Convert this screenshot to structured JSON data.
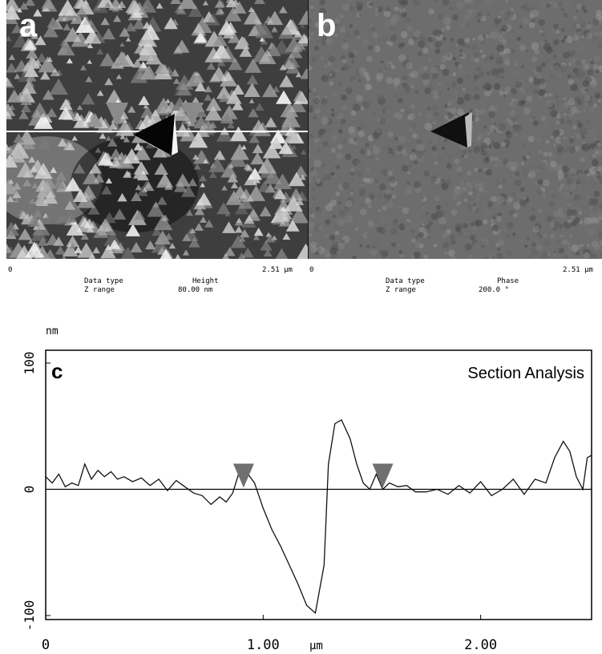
{
  "panel_a": {
    "letter": "a",
    "x_start": "0",
    "x_end": "2.51 µm",
    "data_type_label": "Data type",
    "data_type_value": "Height",
    "z_range_label": "Z range",
    "z_range_value": "80.00 nm"
  },
  "panel_b": {
    "letter": "b",
    "x_start": "0",
    "x_end": "2.51 µm",
    "data_type_label": "Data type",
    "data_type_value": "Phase",
    "z_range_label": "Z range",
    "z_range_value": "200.0 °"
  },
  "chart_data": {
    "type": "line",
    "letter": "c",
    "title": "Section Analysis",
    "ylabel": "nm",
    "xlabel": "µm",
    "xlim": [
      0,
      2.51
    ],
    "ylim": [
      -100,
      100
    ],
    "x_ticks": [
      "0",
      "1.00",
      "2.00"
    ],
    "x_tick_values": [
      0,
      1.0,
      2.0
    ],
    "y_ticks": [
      "100",
      "0",
      "-100"
    ],
    "y_tick_values": [
      100,
      0,
      -100
    ],
    "cursor_markers_x": [
      0.91,
      1.55
    ],
    "series": [
      {
        "x": [
          0,
          0.03,
          0.06,
          0.09,
          0.12,
          0.15,
          0.18,
          0.21,
          0.24,
          0.27,
          0.3,
          0.33,
          0.36,
          0.4,
          0.44,
          0.48,
          0.52,
          0.56,
          0.6,
          0.64,
          0.68,
          0.72,
          0.76,
          0.8,
          0.83,
          0.86,
          0.89,
          0.91,
          0.93,
          0.96,
          1.0,
          1.04,
          1.08,
          1.12,
          1.16,
          1.2,
          1.24,
          1.28,
          1.3,
          1.33,
          1.36,
          1.4,
          1.43,
          1.46,
          1.49,
          1.52,
          1.55,
          1.58,
          1.62,
          1.66,
          1.7,
          1.75,
          1.8,
          1.85,
          1.9,
          1.95,
          2.0,
          2.05,
          2.1,
          2.15,
          2.2,
          2.25,
          2.3,
          2.34,
          2.38,
          2.41,
          2.44,
          2.47,
          2.49,
          2.51
        ],
        "y": [
          10,
          5,
          12,
          2,
          5,
          3,
          20,
          8,
          15,
          10,
          14,
          8,
          10,
          6,
          9,
          3,
          8,
          -1,
          7,
          2,
          -3,
          -5,
          -12,
          -6,
          -10,
          -3,
          14,
          15,
          12,
          5,
          -15,
          -32,
          -45,
          -60,
          -75,
          -92,
          -98,
          -60,
          20,
          52,
          55,
          40,
          20,
          5,
          0,
          12,
          0,
          5,
          2,
          3,
          -2,
          -2,
          0,
          -4,
          3,
          -3,
          6,
          -5,
          0,
          8,
          -4,
          8,
          5,
          25,
          38,
          30,
          10,
          0,
          25,
          27
        ]
      }
    ]
  }
}
